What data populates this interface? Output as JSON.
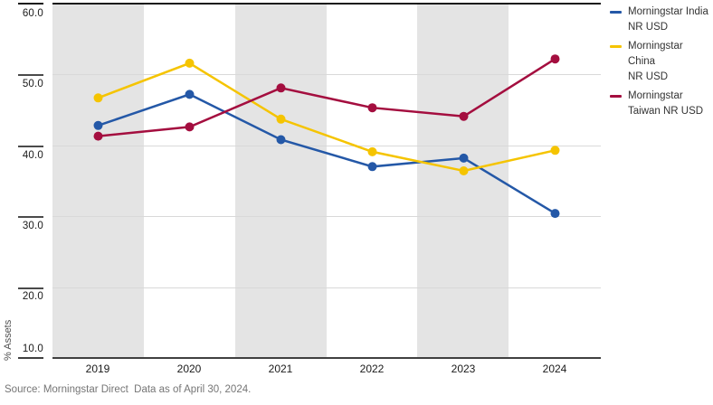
{
  "chart_data": {
    "type": "line",
    "x": [
      "2019",
      "2020",
      "2021",
      "2022",
      "2023",
      "2024"
    ],
    "series": [
      {
        "name": "Morningstar India NR USD",
        "color": "#2458a7",
        "values": [
          42.8,
          47.2,
          40.8,
          37.0,
          38.2,
          30.4
        ]
      },
      {
        "name": "Morningstar China NR USD",
        "color": "#f5c400",
        "values": [
          46.7,
          51.6,
          43.7,
          39.1,
          36.4,
          39.3
        ]
      },
      {
        "name": "Morningstar Taiwan NR USD",
        "color": "#a40e3f",
        "values": [
          41.3,
          42.6,
          48.1,
          45.3,
          44.1,
          52.2
        ]
      }
    ],
    "title": "",
    "xlabel": "",
    "ylabel": "% Assets",
    "ylim": [
      10,
      60
    ],
    "yticks": [
      60.0,
      50.0,
      40.0,
      30.0,
      20.0,
      10.0
    ],
    "grid": "horizontal-light",
    "background_bands": {
      "color": "#e4e4e4",
      "columns": [
        0,
        2,
        4
      ]
    },
    "legend_position": "top-right",
    "marker": "filled-circle"
  },
  "y_axis": {
    "title": "% Assets",
    "tick_labels": [
      "60.0",
      "50.0",
      "40.0",
      "30.0",
      "20.0",
      "10.0"
    ]
  },
  "x_axis": {
    "tick_labels": [
      "2019",
      "2020",
      "2021",
      "2022",
      "2023",
      "2024"
    ]
  },
  "legend": {
    "items": [
      {
        "label": "Morningstar India\nNR USD"
      },
      {
        "label": "Morningstar China\nNR USD"
      },
      {
        "label": "Morningstar\nTaiwan NR USD"
      }
    ]
  },
  "footer": {
    "source_text": "Source: Morningstar Direct  Data as of April 30, 2024."
  },
  "colors": {
    "india_line": "#2458a7",
    "china_line": "#f5c400",
    "taiwan_line": "#a40e3f",
    "band": "#e4e4e4",
    "gridline": "#d9d9d9",
    "axis": "#404040",
    "source_text": "#757575"
  }
}
